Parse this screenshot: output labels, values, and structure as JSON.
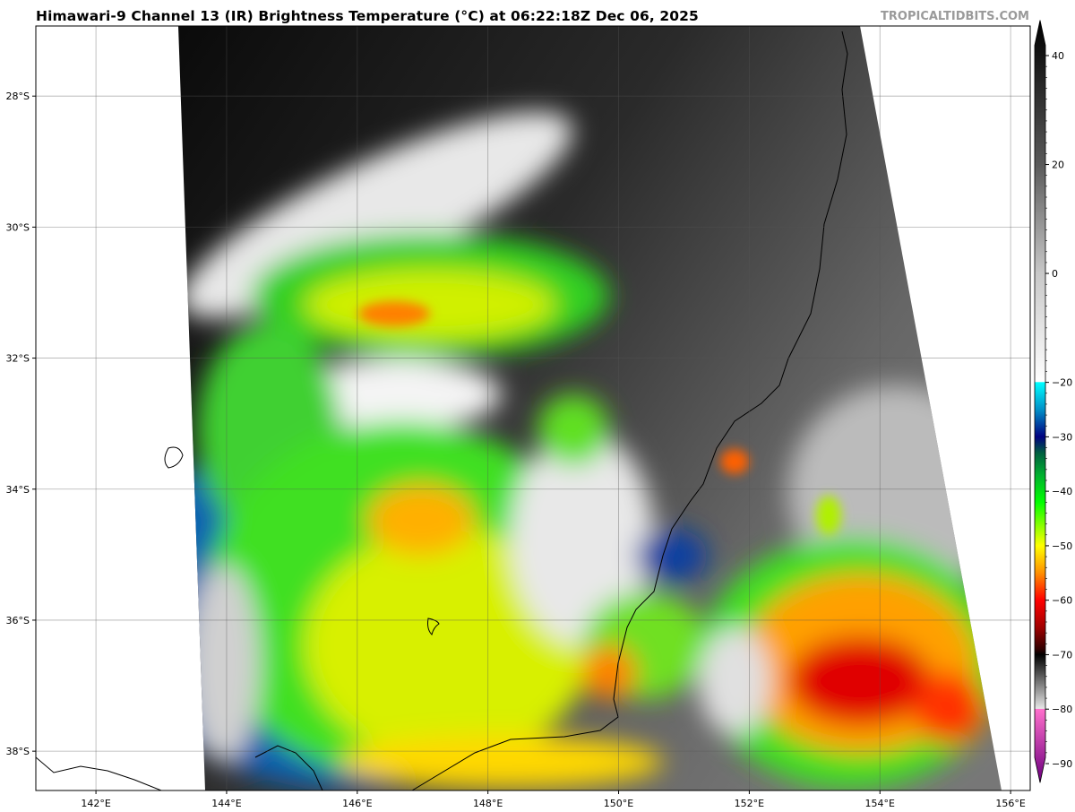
{
  "title": "Himawari-9 Channel 13 (IR) Brightness Temperature (°C) at 06:22:18Z Dec 06, 2025",
  "brand": "TROPICALTIDBITS.COM",
  "map": {
    "lon_range": [
      141.08,
      156.3
    ],
    "lat_range": [
      -26.93,
      -38.6
    ],
    "lon_ticks": [
      {
        "v": 142,
        "label": "142°E"
      },
      {
        "v": 144,
        "label": "144°E"
      },
      {
        "v": 146,
        "label": "146°E"
      },
      {
        "v": 148,
        "label": "148°E"
      },
      {
        "v": 150,
        "label": "150°E"
      },
      {
        "v": 152,
        "label": "152°E"
      },
      {
        "v": 154,
        "label": "154°E"
      },
      {
        "v": 156,
        "label": "156°E"
      }
    ],
    "lat_ticks": [
      {
        "v": -28,
        "label": "28°S"
      },
      {
        "v": -30,
        "label": "30°S"
      },
      {
        "v": -32,
        "label": "32°S"
      },
      {
        "v": -34,
        "label": "34°S"
      },
      {
        "v": -36,
        "label": "36°S"
      },
      {
        "v": -38,
        "label": "38°S"
      }
    ],
    "grid": true
  },
  "colorbar": {
    "range": [
      -93,
      46
    ],
    "ticks": [
      {
        "v": 40,
        "label": "40"
      },
      {
        "v": 20,
        "label": "20"
      },
      {
        "v": 0,
        "label": "0"
      },
      {
        "v": -20,
        "label": "−20"
      },
      {
        "v": -30,
        "label": "−30"
      },
      {
        "v": -40,
        "label": "−40"
      },
      {
        "v": -50,
        "label": "−50"
      },
      {
        "v": -60,
        "label": "−60"
      },
      {
        "v": -70,
        "label": "−70"
      },
      {
        "v": -80,
        "label": "−80"
      },
      {
        "v": -90,
        "label": "−90"
      }
    ],
    "stops": [
      {
        "v": 46,
        "c": "#000000"
      },
      {
        "v": 20,
        "c": "#5a5a5a"
      },
      {
        "v": 0,
        "c": "#c8c8c8"
      },
      {
        "v": -19.9,
        "c": "#ffffff"
      },
      {
        "v": -20,
        "c": "#00ffff"
      },
      {
        "v": -25,
        "c": "#0090c8"
      },
      {
        "v": -30,
        "c": "#000080"
      },
      {
        "v": -33,
        "c": "#006040"
      },
      {
        "v": -37,
        "c": "#00b030"
      },
      {
        "v": -42,
        "c": "#00ff00"
      },
      {
        "v": -50,
        "c": "#ffff00"
      },
      {
        "v": -55,
        "c": "#ff9000"
      },
      {
        "v": -60,
        "c": "#ff0000"
      },
      {
        "v": -65,
        "c": "#a00000"
      },
      {
        "v": -69,
        "c": "#300000"
      },
      {
        "v": -70,
        "c": "#000000"
      },
      {
        "v": -79.9,
        "c": "#e6e6e6"
      },
      {
        "v": -80,
        "c": "#ff70cc"
      },
      {
        "v": -93,
        "c": "#700080"
      }
    ]
  }
}
